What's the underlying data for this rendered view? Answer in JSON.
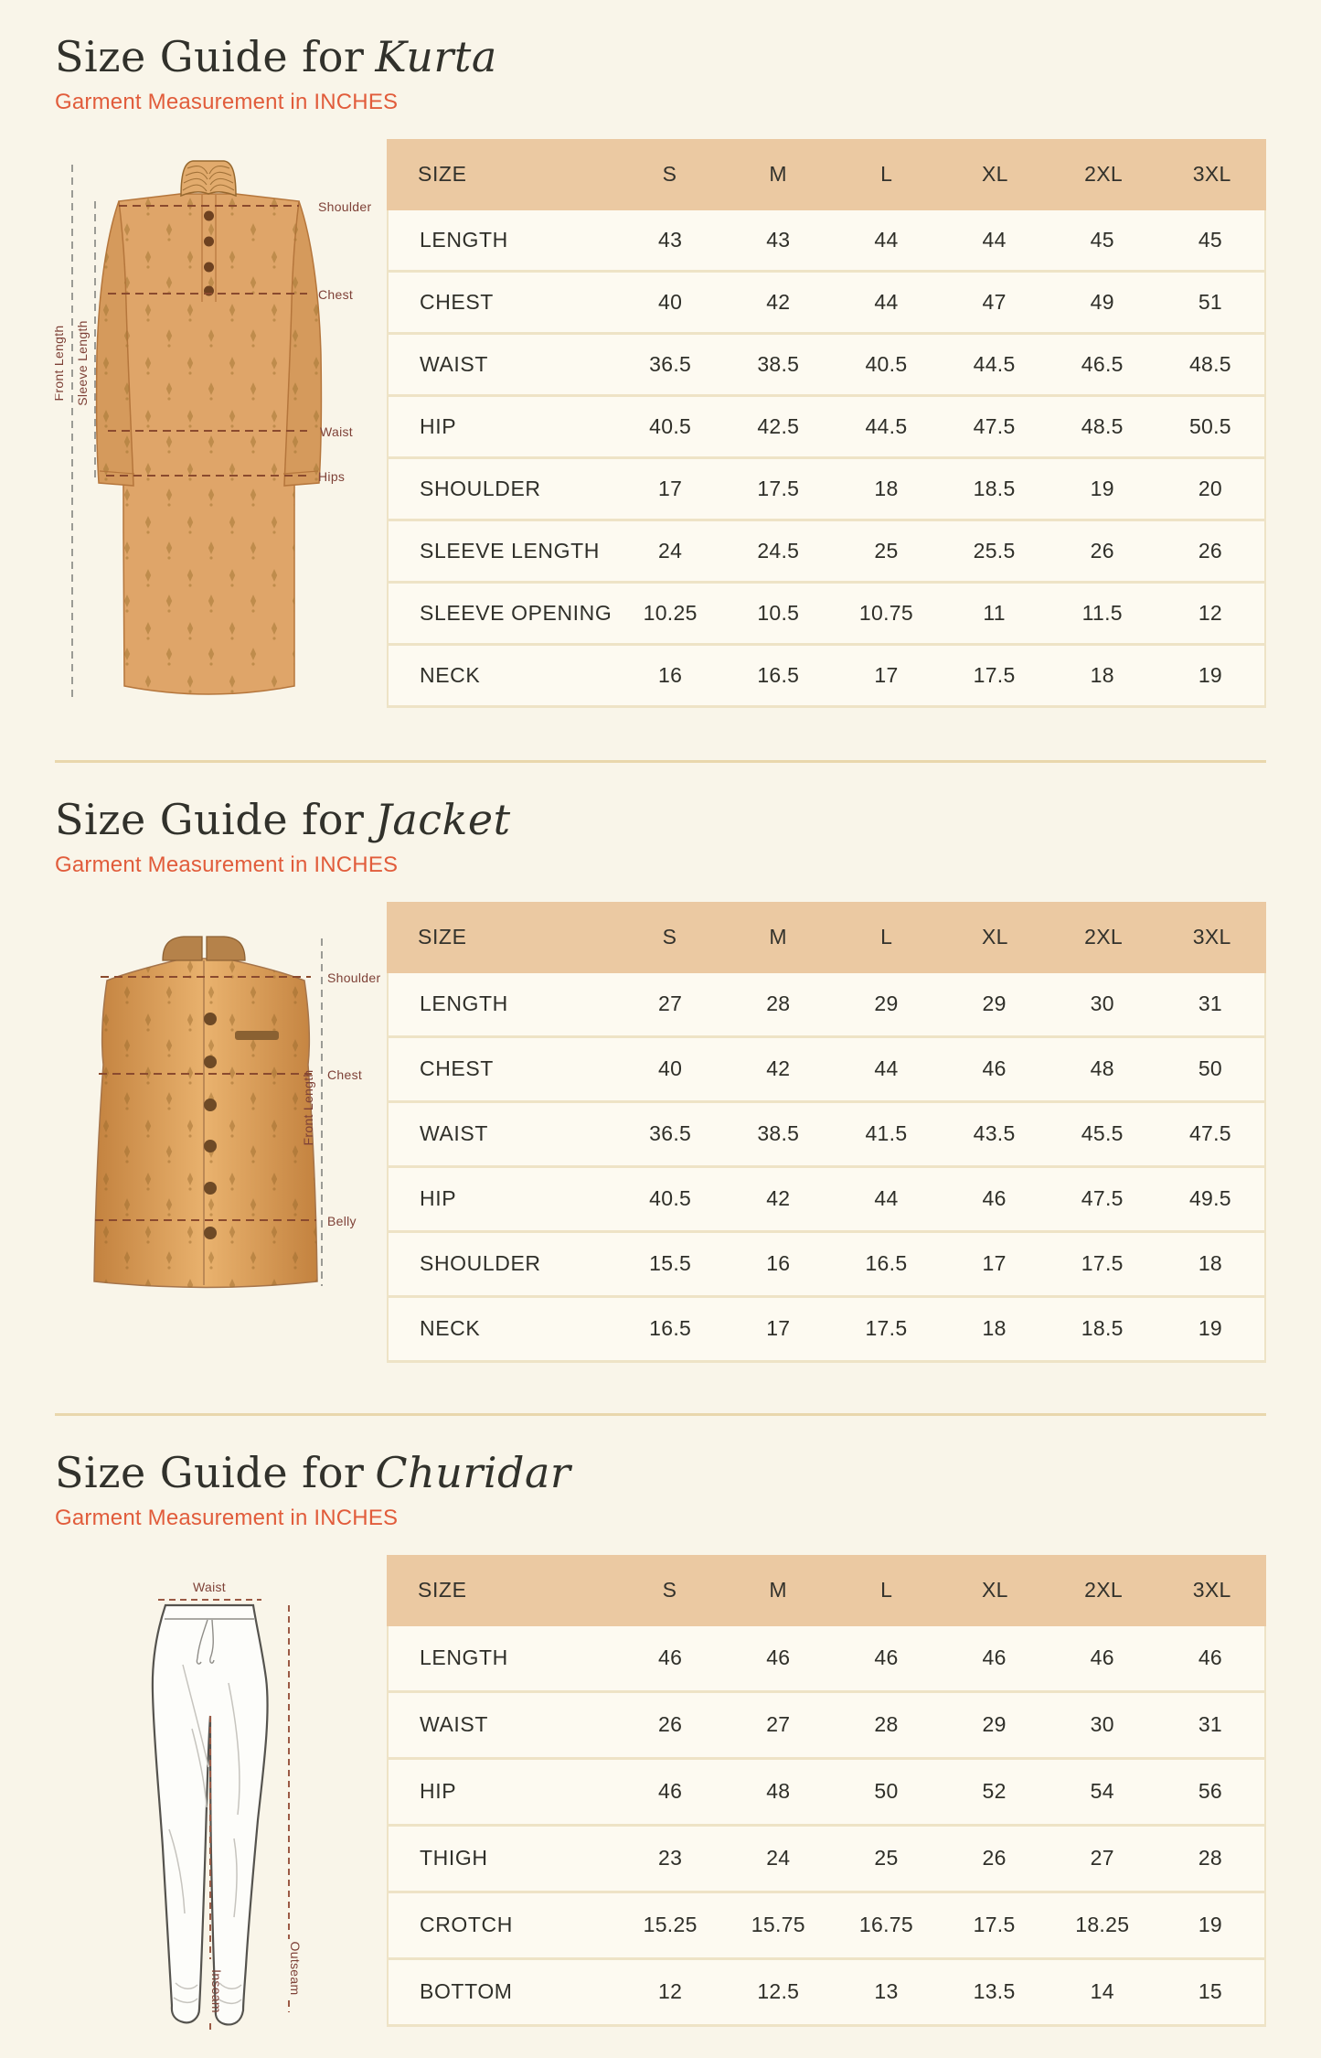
{
  "page": {
    "background": "#f9f5e9",
    "accent_color": "#e15c3b",
    "table_header_bg": "#ebc9a2",
    "diagram_label_color": "#7e4137",
    "measure_dash_color": "#8a4a2e",
    "guide_dash_color": "#9b9b95",
    "kurta_fabric_color": "#dfa569",
    "jacket_fabric_color": "#d99c58"
  },
  "sections": [
    {
      "title_prefix": "Size Guide for",
      "garment_name": "Kurta",
      "subtitle": "Garment Measurement in INCHES",
      "diagram": {
        "front_length": "Front Length",
        "sleeve_length": "Sleeve Length",
        "shoulder": "Shoulder",
        "chest": "Chest",
        "waist": "Waist",
        "hips": "Hips"
      },
      "table": {
        "columns": [
          "SIZE",
          "S",
          "M",
          "L",
          "XL",
          "2XL",
          "3XL"
        ],
        "rows": [
          {
            "label": "LENGTH",
            "values": [
              "43",
              "43",
              "44",
              "44",
              "45",
              "45"
            ]
          },
          {
            "label": "CHEST",
            "values": [
              "40",
              "42",
              "44",
              "47",
              "49",
              "51"
            ]
          },
          {
            "label": "WAIST",
            "values": [
              "36.5",
              "38.5",
              "40.5",
              "44.5",
              "46.5",
              "48.5"
            ]
          },
          {
            "label": "HIP",
            "values": [
              "40.5",
              "42.5",
              "44.5",
              "47.5",
              "48.5",
              "50.5"
            ]
          },
          {
            "label": "SHOULDER",
            "values": [
              "17",
              "17.5",
              "18",
              "18.5",
              "19",
              "20"
            ]
          },
          {
            "label": "SLEEVE LENGTH",
            "values": [
              "24",
              "24.5",
              "25",
              "25.5",
              "26",
              "26"
            ]
          },
          {
            "label": "SLEEVE OPENING",
            "values": [
              "10.25",
              "10.5",
              "10.75",
              "11",
              "11.5",
              "12"
            ]
          },
          {
            "label": "NECK",
            "values": [
              "16",
              "16.5",
              "17",
              "17.5",
              "18",
              "19"
            ]
          }
        ]
      }
    },
    {
      "title_prefix": "Size Guide for",
      "garment_name": "Jacket",
      "subtitle": "Garment Measurement in INCHES",
      "diagram": {
        "shoulder": "Shoulder",
        "chest": "Chest",
        "front_length": "Front Length",
        "belly": "Belly"
      },
      "table": {
        "columns": [
          "SIZE",
          "S",
          "M",
          "L",
          "XL",
          "2XL",
          "3XL"
        ],
        "rows": [
          {
            "label": "LENGTH",
            "values": [
              "27",
              "28",
              "29",
              "29",
              "30",
              "31"
            ]
          },
          {
            "label": "CHEST",
            "values": [
              "40",
              "42",
              "44",
              "46",
              "48",
              "50"
            ]
          },
          {
            "label": "WAIST",
            "values": [
              "36.5",
              "38.5",
              "41.5",
              "43.5",
              "45.5",
              "47.5"
            ]
          },
          {
            "label": "HIP",
            "values": [
              "40.5",
              "42",
              "44",
              "46",
              "47.5",
              "49.5"
            ]
          },
          {
            "label": "SHOULDER",
            "values": [
              "15.5",
              "16",
              "16.5",
              "17",
              "17.5",
              "18"
            ]
          },
          {
            "label": "NECK",
            "values": [
              "16.5",
              "17",
              "17.5",
              "18",
              "18.5",
              "19"
            ]
          }
        ]
      }
    },
    {
      "title_prefix": "Size Guide for",
      "garment_name": "Churidar",
      "subtitle": "Garment Measurement in INCHES",
      "diagram": {
        "waist": "Waist",
        "inseam": "Inseam",
        "outseam": "Outseam"
      },
      "table": {
        "columns": [
          "SIZE",
          "S",
          "M",
          "L",
          "XL",
          "2XL",
          "3XL"
        ],
        "rows": [
          {
            "label": "LENGTH",
            "values": [
              "46",
              "46",
              "46",
              "46",
              "46",
              "46"
            ]
          },
          {
            "label": "WAIST",
            "values": [
              "26",
              "27",
              "28",
              "29",
              "30",
              "31"
            ]
          },
          {
            "label": "HIP",
            "values": [
              "46",
              "48",
              "50",
              "52",
              "54",
              "56"
            ]
          },
          {
            "label": "THIGH",
            "values": [
              "23",
              "24",
              "25",
              "26",
              "27",
              "28"
            ]
          },
          {
            "label": "CROTCH",
            "values": [
              "15.25",
              "15.75",
              "16.75",
              "17.5",
              "18.25",
              "19"
            ]
          },
          {
            "label": "BOTTOM",
            "values": [
              "12",
              "12.5",
              "13",
              "13.5",
              "14",
              "15"
            ]
          }
        ]
      }
    }
  ]
}
